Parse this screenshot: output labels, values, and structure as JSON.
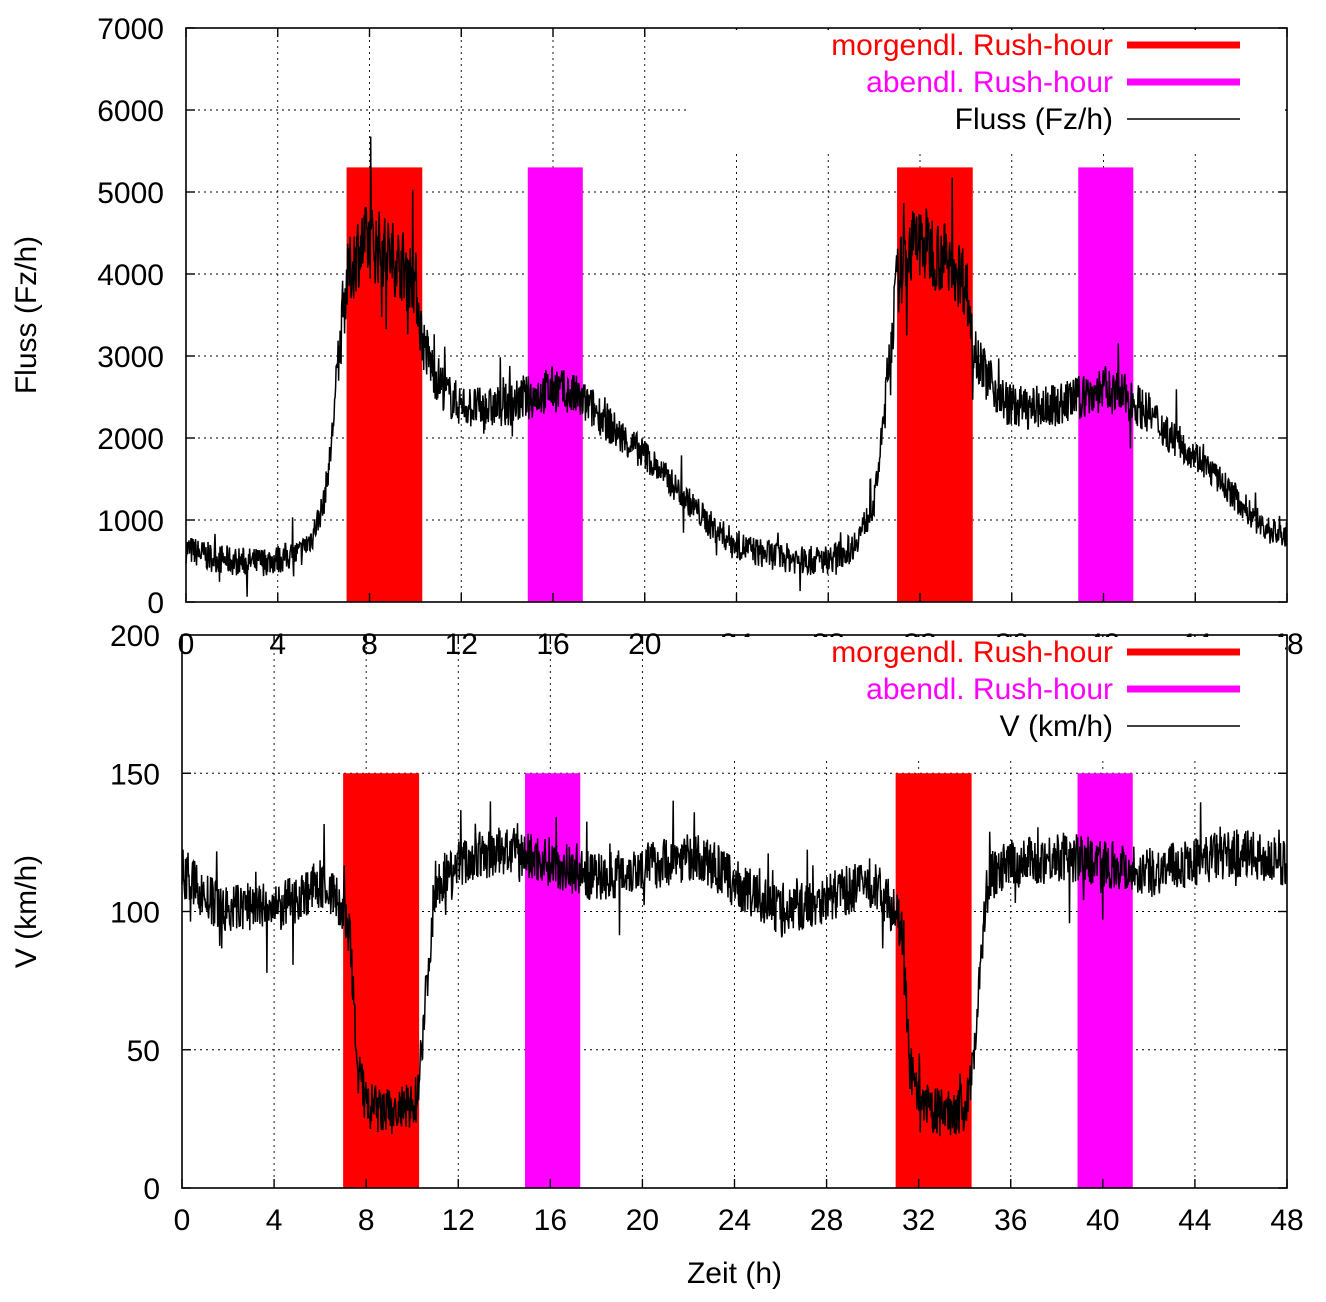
{
  "chart_data": [
    {
      "type": "line",
      "title": "",
      "xlabel": "",
      "ylabel": "Fluss (Fz/h)",
      "xlim": [
        0,
        48
      ],
      "ylim": [
        0,
        7000
      ],
      "grid": true,
      "legend_position": "top-right",
      "x_ticks": [
        "0",
        "4",
        "8",
        "12",
        "16",
        "20",
        "24",
        "28",
        "32",
        "36",
        "40",
        "44",
        "48"
      ],
      "y_ticks": [
        "0",
        "1000",
        "2000",
        "3000",
        "4000",
        "5000",
        "6000",
        "7000"
      ],
      "bands": [
        {
          "name": "morgendl. Rush-hour",
          "color": "#ff0000",
          "x": [
            7.0,
            10.3
          ],
          "top": 5300
        },
        {
          "name": "abendl. Rush-hour",
          "color": "#ff00ff",
          "x": [
            14.9,
            17.3
          ],
          "top": 5300
        },
        {
          "name": "morgendl. Rush-hour",
          "color": "#ff0000",
          "x": [
            31.0,
            34.3
          ],
          "top": 5300
        },
        {
          "name": "abendl. Rush-hour",
          "color": "#ff00ff",
          "x": [
            38.9,
            41.3
          ],
          "top": 5300
        }
      ],
      "legend": [
        {
          "label": "morgendl. Rush-hour",
          "color": "#ff0000",
          "kind": "band"
        },
        {
          "label": "abendl. Rush-hour",
          "color": "#ff00ff",
          "kind": "band"
        },
        {
          "label": "Fluss (Fz/h)",
          "color": "#000000",
          "kind": "line"
        }
      ],
      "series": [
        {
          "name": "Fluss (Fz/h)",
          "color": "#000000",
          "x": [
            0,
            1,
            2,
            3,
            4,
            5,
            5.5,
            6,
            6.3,
            6.6,
            7,
            7.5,
            8,
            8.5,
            9,
            9.5,
            10,
            10.3,
            10.8,
            11.5,
            12,
            13,
            14,
            15,
            16,
            17,
            18,
            19,
            20,
            21,
            22,
            23,
            24,
            25,
            26,
            27,
            28,
            29,
            29.5,
            30,
            30.3,
            30.6,
            31,
            31.5,
            32,
            32.5,
            33,
            33.5,
            34,
            34.3,
            34.8,
            35.5,
            36,
            37,
            38,
            39,
            40,
            41,
            42,
            43,
            44,
            45,
            46,
            47,
            48
          ],
          "y": [
            650,
            550,
            500,
            480,
            520,
            600,
            800,
            1200,
            1800,
            2800,
            3900,
            4300,
            4400,
            4300,
            4200,
            4100,
            3900,
            3200,
            2800,
            2500,
            2400,
            2350,
            2400,
            2500,
            2600,
            2500,
            2300,
            2000,
            1800,
            1500,
            1200,
            900,
            700,
            600,
            550,
            500,
            520,
            650,
            900,
            1200,
            1900,
            2800,
            3900,
            4300,
            4400,
            4300,
            4200,
            4100,
            3900,
            3200,
            2800,
            2500,
            2400,
            2350,
            2400,
            2500,
            2600,
            2500,
            2300,
            2000,
            1800,
            1500,
            1200,
            900,
            800
          ]
        }
      ]
    },
    {
      "type": "line",
      "title": "",
      "xlabel": "Zeit (h)",
      "ylabel": "V (km/h)",
      "xlim": [
        0,
        48
      ],
      "ylim": [
        0,
        200
      ],
      "grid": true,
      "legend_position": "top-right",
      "x_ticks": [
        "0",
        "4",
        "8",
        "12",
        "16",
        "20",
        "24",
        "28",
        "32",
        "36",
        "40",
        "44",
        "48"
      ],
      "y_ticks": [
        "0",
        "50",
        "100",
        "150",
        "200"
      ],
      "bands": [
        {
          "name": "morgendl. Rush-hour",
          "color": "#ff0000",
          "x": [
            7.0,
            10.3
          ],
          "top": 150
        },
        {
          "name": "abendl. Rush-hour",
          "color": "#ff00ff",
          "x": [
            14.9,
            17.3
          ],
          "top": 150
        },
        {
          "name": "morgendl. Rush-hour",
          "color": "#ff0000",
          "x": [
            31.0,
            34.3
          ],
          "top": 150
        },
        {
          "name": "abendl. Rush-hour",
          "color": "#ff00ff",
          "x": [
            38.9,
            41.3
          ],
          "top": 150
        }
      ],
      "legend": [
        {
          "label": "morgendl. Rush-hour",
          "color": "#ff0000",
          "kind": "band"
        },
        {
          "label": "abendl. Rush-hour",
          "color": "#ff00ff",
          "kind": "band"
        },
        {
          "label": "V (km/h)",
          "color": "#000000",
          "kind": "line"
        }
      ],
      "series": [
        {
          "name": "V (km/h)",
          "color": "#000000",
          "x": [
            0,
            1,
            2,
            3,
            4,
            5,
            6,
            6.5,
            7,
            7.3,
            7.6,
            8,
            8.5,
            9,
            9.5,
            10,
            10.2,
            10.5,
            11,
            12,
            13,
            14,
            15,
            16,
            17,
            18,
            19,
            20,
            21,
            22,
            23,
            24,
            25,
            26,
            27,
            28,
            29,
            30,
            30.5,
            31,
            31.3,
            31.6,
            32,
            32.5,
            33,
            33.5,
            34,
            34.2,
            34.5,
            35,
            36,
            37,
            38,
            39,
            40,
            41,
            42,
            43,
            44,
            45,
            46,
            47,
            48
          ],
          "y": [
            115,
            105,
            100,
            103,
            100,
            105,
            110,
            107,
            100,
            90,
            45,
            30,
            28,
            27,
            28,
            29,
            33,
            60,
            110,
            117,
            120,
            122,
            120,
            118,
            115,
            112,
            114,
            116,
            118,
            120,
            117,
            110,
            105,
            100,
            102,
            105,
            108,
            110,
            105,
            100,
            90,
            45,
            30,
            28,
            27,
            28,
            29,
            33,
            60,
            112,
            117,
            118,
            120,
            119,
            118,
            116,
            114,
            116,
            118,
            120,
            121,
            119,
            117
          ]
        }
      ]
    }
  ]
}
